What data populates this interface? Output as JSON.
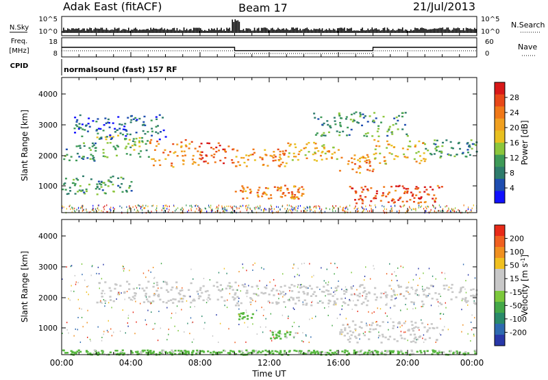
{
  "header": {
    "station": "Adak East (fitACF)",
    "beam": "Beam 17",
    "date": "21/Jul/2013"
  },
  "panels": {
    "nsky": {
      "label": "N.Sky",
      "tick_top": "10^5",
      "tick_bottom": "10^0",
      "right_label": "N.Search",
      "right_tick_top": "10^5",
      "right_tick_bottom": "10^0"
    },
    "freq": {
      "label_line1": "Freq.",
      "label_line2": "[MHz]",
      "tick_top": "18",
      "tick_bottom": "8",
      "right_label": "Nave",
      "right_tick_top": "60",
      "right_tick_bottom": "0"
    },
    "cpid": {
      "label": "CPID",
      "text": "normalsound (fast) 157 RF"
    }
  },
  "axes": {
    "ylabel": "Slant Range [km]",
    "yticks": [
      "1000",
      "2000",
      "3000",
      "4000"
    ],
    "xticks": [
      "00:00",
      "04:00",
      "08:00",
      "12:00",
      "16:00",
      "20:00",
      "00:00"
    ],
    "xlabel": "Time UT"
  },
  "colorbars": {
    "power": {
      "label": "Power [dB]",
      "ticks": [
        "4",
        "8",
        "12",
        "16",
        "20",
        "24",
        "28"
      ],
      "colors": [
        "#1010ff",
        "#1e4db0",
        "#2e7c6c",
        "#3e9a58",
        "#8cc63c",
        "#e8c020",
        "#f0a020",
        "#f07818",
        "#e84818",
        "#d81818"
      ]
    },
    "velocity": {
      "label": "Velocity [m s^-1]",
      "ticks": [
        "200",
        "100",
        "50",
        "15",
        "-15",
        "-50",
        "-100",
        "-200"
      ],
      "colors": [
        "#2838a8",
        "#2e6ab0",
        "#2a8a6a",
        "#44a848",
        "#7cc83c",
        "#c8c8c8",
        "#c8c8c8",
        "#f0c020",
        "#f09020",
        "#f06020",
        "#e82a18"
      ]
    }
  },
  "chart_data": {
    "type": "heatmap",
    "x_range_hours": [
      0,
      24
    ],
    "y_range_km": [
      180,
      4600
    ],
    "frequency_segments_mhz": [
      {
        "from": 0,
        "to": 10,
        "value": 13
      },
      {
        "from": 10,
        "to": 18,
        "value": 10.6
      },
      {
        "from": 18,
        "to": 24,
        "value": 13
      }
    ],
    "power_bands": [
      {
        "t0": 0.0,
        "t1": 2.0,
        "r0": 1900,
        "r1": 2500,
        "level": 8
      },
      {
        "t0": 2.0,
        "t1": 5.0,
        "r0": 2000,
        "r1": 2800,
        "level": 12
      },
      {
        "t0": 5.0,
        "t1": 8.0,
        "r0": 1700,
        "r1": 2600,
        "level": 20
      },
      {
        "t0": 8.0,
        "t1": 10.0,
        "r0": 1800,
        "r1": 2500,
        "level": 24
      },
      {
        "t0": 10.0,
        "t1": 13.0,
        "r0": 1700,
        "r1": 2300,
        "level": 20
      },
      {
        "t0": 13.0,
        "t1": 16.0,
        "r0": 1900,
        "r1": 2500,
        "level": 16
      },
      {
        "t0": 16.0,
        "t1": 18.0,
        "r0": 1500,
        "r1": 2100,
        "level": 20
      },
      {
        "t0": 18.0,
        "t1": 21.0,
        "r0": 1800,
        "r1": 2600,
        "level": 16
      },
      {
        "t0": 21.0,
        "t1": 24.0,
        "r0": 2000,
        "r1": 2600,
        "level": 8
      },
      {
        "t0": 10.0,
        "t1": 14.0,
        "r0": 650,
        "r1": 1100,
        "level": 20
      },
      {
        "t0": 16.5,
        "t1": 22.0,
        "r0": 500,
        "r1": 1100,
        "level": 24
      },
      {
        "t0": 0.0,
        "t1": 4.0,
        "r0": 800,
        "r1": 1400,
        "level": 8
      },
      {
        "t0": 0.5,
        "t1": 6.0,
        "r0": 2600,
        "r1": 3400,
        "level": 4
      },
      {
        "t0": 14.5,
        "t1": 20.0,
        "r0": 2700,
        "r1": 3500,
        "level": 8
      }
    ],
    "velocity_bands": [
      {
        "t0": 2.0,
        "t1": 10.0,
        "r0": 1900,
        "r1": 2600,
        "value": 0
      },
      {
        "t0": 10.0,
        "t1": 24.0,
        "r0": 1800,
        "r1": 2500,
        "value": 0
      },
      {
        "t0": 16.0,
        "t1": 22.0,
        "r0": 600,
        "r1": 1300,
        "value": 0
      },
      {
        "t0": 12.0,
        "t1": 13.5,
        "r0": 700,
        "r1": 1000,
        "value": 30
      },
      {
        "t0": 10.2,
        "t1": 11.0,
        "r0": 1300,
        "r1": 1600,
        "value": 30
      },
      {
        "t0": 0.0,
        "t1": 24.0,
        "r0": 200,
        "r1": 350,
        "value": 30
      }
    ]
  }
}
